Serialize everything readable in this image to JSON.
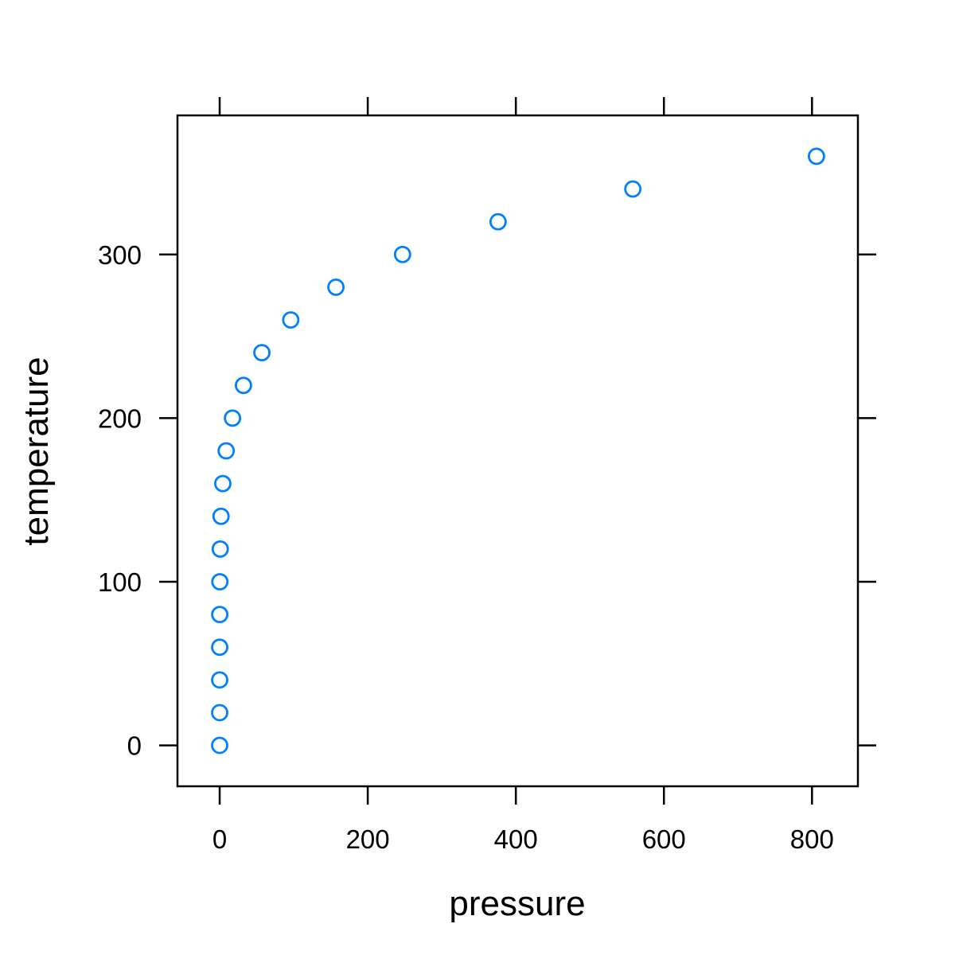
{
  "chart_data": {
    "type": "scatter",
    "xlabel": "pressure",
    "ylabel": "temperature",
    "xlim": [
      -57,
      862
    ],
    "ylim": [
      -25,
      385
    ],
    "x_ticks": [
      0,
      200,
      400,
      600,
      800
    ],
    "y_ticks": [
      0,
      100,
      200,
      300
    ],
    "grid": false,
    "marker": "open-circle",
    "series": [
      {
        "color": "#0080ff",
        "points": [
          {
            "x": 0.0002,
            "y": 0
          },
          {
            "x": 0.0012,
            "y": 20
          },
          {
            "x": 0.006,
            "y": 40
          },
          {
            "x": 0.03,
            "y": 60
          },
          {
            "x": 0.09,
            "y": 80
          },
          {
            "x": 0.27,
            "y": 100
          },
          {
            "x": 0.75,
            "y": 120
          },
          {
            "x": 1.85,
            "y": 140
          },
          {
            "x": 4.2,
            "y": 160
          },
          {
            "x": 8.8,
            "y": 180
          },
          {
            "x": 17.3,
            "y": 200
          },
          {
            "x": 32.1,
            "y": 220
          },
          {
            "x": 57.0,
            "y": 240
          },
          {
            "x": 96.0,
            "y": 260
          },
          {
            "x": 157.0,
            "y": 280
          },
          {
            "x": 247.0,
            "y": 300
          },
          {
            "x": 376.0,
            "y": 320
          },
          {
            "x": 558.0,
            "y": 340
          },
          {
            "x": 806.0,
            "y": 360
          }
        ]
      }
    ]
  }
}
